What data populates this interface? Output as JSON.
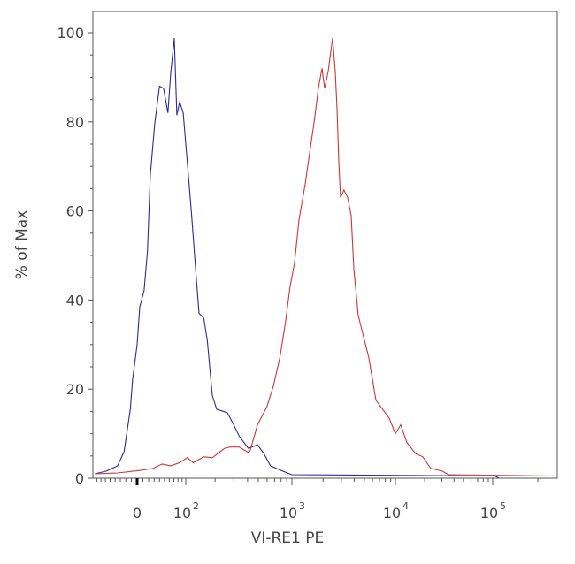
{
  "chart_data": {
    "type": "line",
    "subtype": "histogram-overlay",
    "title": "",
    "xlabel": "VI-RE1 PE",
    "ylabel": "% of Max",
    "x_scale": "biexponential",
    "xlim": [
      -90,
      262144
    ],
    "ylim": [
      0,
      100
    ],
    "grid": false,
    "legend": "none",
    "y_ticks": [
      0,
      20,
      40,
      60,
      80,
      100
    ],
    "y_tick_labels": [
      "0",
      "20",
      "40",
      "60",
      "80",
      "100"
    ],
    "x_ticks": [
      0,
      100,
      1000,
      10000,
      100000
    ],
    "x_tick_labels": [
      {
        "base": "0",
        "exp": ""
      },
      {
        "base": "10",
        "exp": "2"
      },
      {
        "base": "10",
        "exp": "3"
      },
      {
        "base": "10",
        "exp": "4"
      },
      {
        "base": "10",
        "exp": "5"
      }
    ],
    "series": [
      {
        "color": "#2a2a9c",
        "x": [
          -85,
          -58,
          -35,
          -23,
          -12,
          -8,
          0,
          4.6,
          12,
          18,
          23,
          31,
          40,
          48,
          57,
          63,
          71,
          77,
          84,
          93,
          100,
          110,
          117,
          128,
          139,
          155,
          168,
          188,
          207,
          261,
          299,
          335,
          406,
          492,
          562,
          643,
          825,
          1000,
          104000,
          110000,
          262144
        ],
        "y": [
          1,
          1.6,
          2.8,
          6,
          15.5,
          22,
          30,
          38.5,
          42,
          51,
          68,
          79.6,
          88,
          87.5,
          82,
          91,
          98.8,
          81.5,
          84.5,
          82,
          75,
          65,
          58,
          47,
          37,
          36,
          31,
          18.6,
          15.5,
          14.7,
          12,
          9.5,
          6.7,
          7.5,
          5.5,
          2.8,
          1.6,
          0.8,
          0.5,
          0,
          0
        ]
      },
      {
        "color": "#d03535",
        "x": [
          -85,
          -35,
          7.6,
          28,
          45,
          63,
          84,
          104,
          121,
          155,
          188,
          246,
          277,
          335,
          406,
          422,
          492,
          596,
          681,
          779,
          875,
          962,
          1061,
          1171,
          1343,
          1482,
          1635,
          1804,
          1953,
          2071,
          2241,
          2472,
          2623,
          2729,
          2838,
          2951,
          3192,
          3455,
          3738,
          3964,
          4374,
          5541,
          6486,
          8710,
          10000,
          11340,
          13130,
          16190,
          19130,
          23100,
          30300,
          35100,
          262144
        ],
        "y": [
          1,
          1.2,
          1.8,
          2.2,
          3.2,
          2.8,
          3.5,
          4.6,
          3.5,
          4.8,
          4.6,
          6.7,
          7,
          7,
          5.8,
          6.2,
          12,
          16,
          20.6,
          27,
          35,
          43,
          48.4,
          58,
          66,
          73,
          79.6,
          87.5,
          92,
          87.5,
          91.3,
          98.8,
          91.3,
          83,
          71,
          63,
          64.7,
          63,
          59,
          47,
          36.5,
          27,
          17.5,
          13.5,
          10,
          12,
          8,
          5.5,
          4.8,
          2.2,
          1.6,
          0.8,
          0.5
        ]
      }
    ]
  }
}
